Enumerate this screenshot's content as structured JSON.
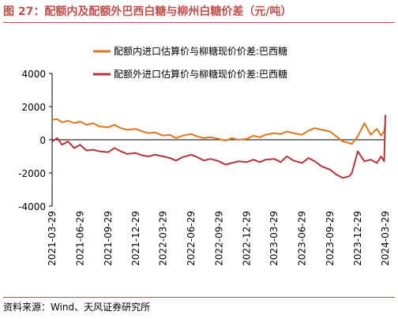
{
  "header": {
    "title": "图 27：配额内及配额外巴西白糖与柳州白糖价差（元/吨）"
  },
  "footer": {
    "source": "资料来源：Wind、天风证券研究所"
  },
  "colors": {
    "series_inside": "#e0761c",
    "series_outside": "#b5333a",
    "rule": "#c0504d"
  },
  "chart_data": {
    "type": "line",
    "ylim": [
      -4000,
      4000
    ],
    "yticks": [
      -4000,
      -2000,
      0,
      2000,
      4000
    ],
    "ytick_labels": [
      "-4000",
      "-2000",
      "0",
      "2000",
      "4000"
    ],
    "xlim": [
      "2021-03-29",
      "2024-03-29"
    ],
    "xtick_labels": [
      "2021-03-29",
      "2021-06-29",
      "2021-09-29",
      "2021-12-29",
      "2022-03-29",
      "2022-06-29",
      "2022-09-29",
      "2022-12-29",
      "2023-03-29",
      "2023-06-29",
      "2023-09-29",
      "2023-12-29",
      "2024-03-29"
    ],
    "legend_position": "top-center",
    "series": [
      {
        "name": "配额内进口估算价与柳糖现价价差:巴西糖",
        "color": "#e0761c",
        "x": [
          "2021-03-29",
          "2021-04-15",
          "2021-05-01",
          "2021-05-20",
          "2021-06-10",
          "2021-06-29",
          "2021-07-20",
          "2021-08-10",
          "2021-09-01",
          "2021-09-29",
          "2021-10-20",
          "2021-11-10",
          "2021-12-01",
          "2021-12-29",
          "2022-01-20",
          "2022-02-10",
          "2022-03-01",
          "2022-03-29",
          "2022-04-20",
          "2022-05-10",
          "2022-06-01",
          "2022-06-29",
          "2022-07-20",
          "2022-08-10",
          "2022-09-01",
          "2022-09-29",
          "2022-10-20",
          "2022-11-10",
          "2022-12-01",
          "2022-12-29",
          "2023-01-20",
          "2023-02-10",
          "2023-03-01",
          "2023-03-29",
          "2023-04-20",
          "2023-05-10",
          "2023-06-01",
          "2023-06-29",
          "2023-07-20",
          "2023-08-10",
          "2023-09-01",
          "2023-09-29",
          "2023-10-20",
          "2023-11-10",
          "2023-12-01",
          "2023-12-10",
          "2023-12-29",
          "2024-01-20",
          "2024-02-10",
          "2024-03-01",
          "2024-03-15",
          "2024-03-25",
          "2024-03-29"
        ],
        "y": [
          1200,
          1250,
          1050,
          1150,
          1000,
          1100,
          900,
          1000,
          800,
          750,
          900,
          700,
          600,
          650,
          500,
          400,
          450,
          250,
          300,
          100,
          250,
          350,
          200,
          100,
          150,
          50,
          -50,
          100,
          0,
          50,
          250,
          150,
          300,
          400,
          350,
          500,
          400,
          300,
          550,
          700,
          600,
          500,
          200,
          -100,
          -200,
          -250,
          200,
          1000,
          300,
          650,
          250,
          500,
          1050
        ]
      },
      {
        "name": "配额外进口估算价与柳糖现价价差:巴西糖",
        "color": "#b5333a",
        "x": [
          "2021-03-29",
          "2021-04-15",
          "2021-05-01",
          "2021-05-20",
          "2021-06-10",
          "2021-06-29",
          "2021-07-20",
          "2021-08-10",
          "2021-09-01",
          "2021-09-29",
          "2021-10-20",
          "2021-11-10",
          "2021-12-01",
          "2021-12-29",
          "2022-01-20",
          "2022-02-10",
          "2022-03-01",
          "2022-03-29",
          "2022-04-20",
          "2022-05-10",
          "2022-06-01",
          "2022-06-29",
          "2022-07-20",
          "2022-08-10",
          "2022-09-01",
          "2022-09-29",
          "2022-10-20",
          "2022-11-10",
          "2022-12-01",
          "2022-12-29",
          "2023-01-20",
          "2023-02-10",
          "2023-03-01",
          "2023-03-29",
          "2023-04-20",
          "2023-05-10",
          "2023-06-01",
          "2023-06-29",
          "2023-07-20",
          "2023-08-10",
          "2023-09-01",
          "2023-09-29",
          "2023-10-20",
          "2023-11-10",
          "2023-12-01",
          "2023-12-10",
          "2023-12-29",
          "2024-01-20",
          "2024-02-10",
          "2024-03-01",
          "2024-03-15",
          "2024-03-25",
          "2024-03-29"
        ],
        "y": [
          -100,
          100,
          -300,
          -100,
          -500,
          -300,
          -650,
          -600,
          -700,
          -750,
          -500,
          -700,
          -850,
          -800,
          -950,
          -1000,
          -900,
          -1000,
          -1100,
          -1250,
          -1050,
          -900,
          -1050,
          -1250,
          -1150,
          -1300,
          -1500,
          -1400,
          -1300,
          -1350,
          -1200,
          -1350,
          -1200,
          -1150,
          -1350,
          -1000,
          -1250,
          -1400,
          -1100,
          -1300,
          -1600,
          -1800,
          -2100,
          -2300,
          -2200,
          -2000,
          -700,
          -1300,
          -1200,
          -1400,
          -1000,
          -1300,
          1500
        ]
      }
    ]
  }
}
